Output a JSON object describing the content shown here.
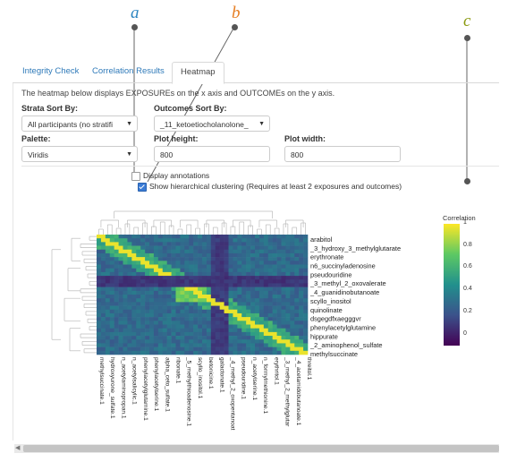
{
  "callouts": [
    {
      "letter": "a",
      "color": "#2e86c1"
    },
    {
      "letter": "b",
      "color": "#e67e22"
    },
    {
      "letter": "c",
      "color": "#8a9a10"
    }
  ],
  "tabs": [
    {
      "label": "Integrity Check",
      "active": false
    },
    {
      "label": "Correlation Results",
      "active": false
    },
    {
      "label": "Heatmap",
      "active": true
    }
  ],
  "description": "The heatmap below displays EXPOSUREs on the x axis and OUTCOMEs on the y axis.",
  "controls": {
    "strata_label": "Strata Sort By:",
    "strata_value": "All participants (no stratifi",
    "outcomes_label": "Outcomes Sort By:",
    "outcomes_value": "_11_ketoetiocholanolone_",
    "palette_label": "Palette:",
    "palette_value": "Viridis",
    "height_label": "Plot height:",
    "height_value": "800",
    "width_label": "Plot width:",
    "width_value": "800",
    "annotations_label": "Display annotations",
    "annotations_checked": false,
    "clustering_label": "Show hierarchical clustering (Requires at least 2 exposures and outcomes)",
    "clustering_checked": true
  },
  "chart_data": {
    "type": "heatmap",
    "title": "",
    "legend_title": "Correlation",
    "legend_ticks": [
      "1",
      "0.8",
      "0.6",
      "0.4",
      "0.2",
      "0"
    ],
    "colorscale": "Viridis",
    "zlim": [
      -0.1,
      1
    ],
    "y_labels": [
      "arabitol",
      "_3_hydroxy_3_methylglutarate",
      "erythronate",
      "n6_succinyladenosine",
      "pseudouridine",
      "_3_methyl_2_oxovalerate",
      "_4_guanidinobutanoate",
      "scyllo_inositol",
      "quinolinate",
      "dsgegdfxaegggvr",
      "phenylacetylglutamine",
      "hippurate",
      "_2_aminophenol_sulfate",
      "methylsuccinate"
    ],
    "x_labels": [
      "methylsuccinate.1",
      "hydroxyurone_sulfate.1",
      "n_acetylaminopropan.1",
      "n_acetylsalicylic.1",
      "phenylacetylglutamine.1",
      "phenylacetylserine.1",
      "alpha_ceto_sulfate.1",
      "ribonate.1",
      "_5_methylthioadenosine.1",
      "scyllo_inositol.1",
      "betonicine.1",
      "galactonate.1",
      "_4_methyl_2_oxopentanoat",
      "pseudouridine.1",
      "n_acetylserine.1",
      "n_formylmethionine.1",
      "erythritol.1",
      "_3_methyl_2_methylglutar",
      "_4_acetamidobutanoate.1",
      "threitol.1"
    ]
  }
}
